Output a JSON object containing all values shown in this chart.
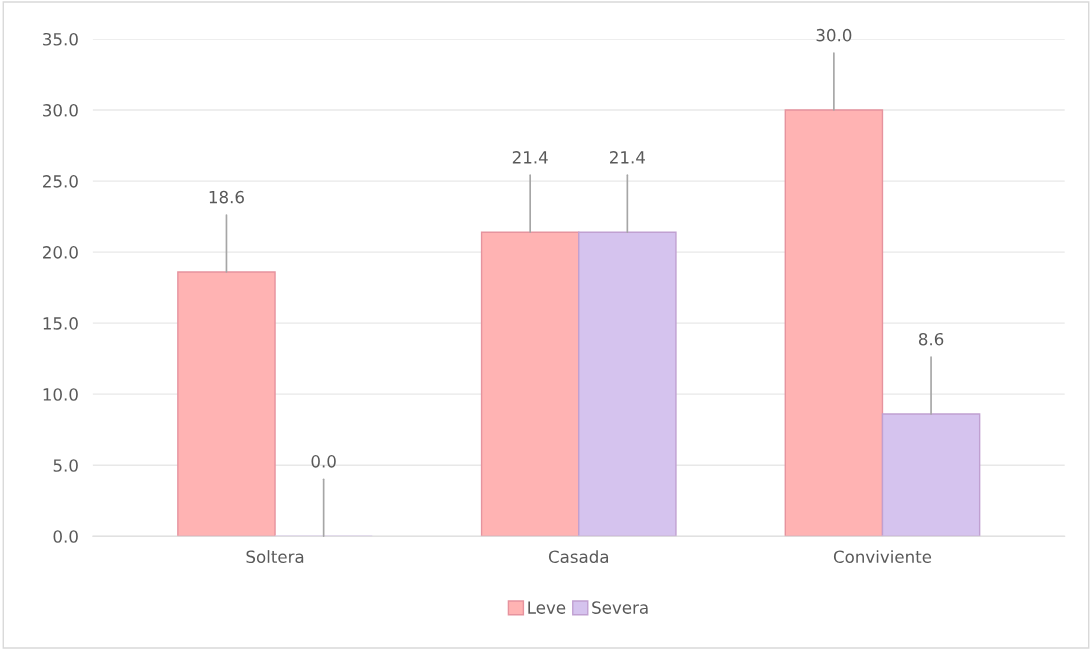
{
  "chart_data": {
    "type": "bar",
    "categories": [
      "Soltera",
      "Casada",
      "Conviviente"
    ],
    "series": [
      {
        "name": "Leve",
        "color": "#ffb3b3",
        "values": [
          18.6,
          21.4,
          30.0
        ],
        "value_labels": [
          "18.6",
          "21.4",
          "30.0"
        ]
      },
      {
        "name": "Severa",
        "color": "#d5c3ee",
        "values": [
          0.0,
          21.4,
          8.6
        ],
        "value_labels": [
          "0.0",
          "21.4",
          "8.6"
        ]
      }
    ],
    "ylim": [
      0,
      35
    ],
    "yticks": [
      {
        "value": 0,
        "label": "0.0"
      },
      {
        "value": 5,
        "label": "5.0"
      },
      {
        "value": 10,
        "label": "10.0"
      },
      {
        "value": 15,
        "label": "15.0"
      },
      {
        "value": 20,
        "label": "20.0"
      },
      {
        "value": 25,
        "label": "25.0"
      },
      {
        "value": 30,
        "label": "30.0"
      },
      {
        "value": 35,
        "label": "35.0"
      }
    ],
    "grid": "y",
    "legend": "bottom"
  }
}
